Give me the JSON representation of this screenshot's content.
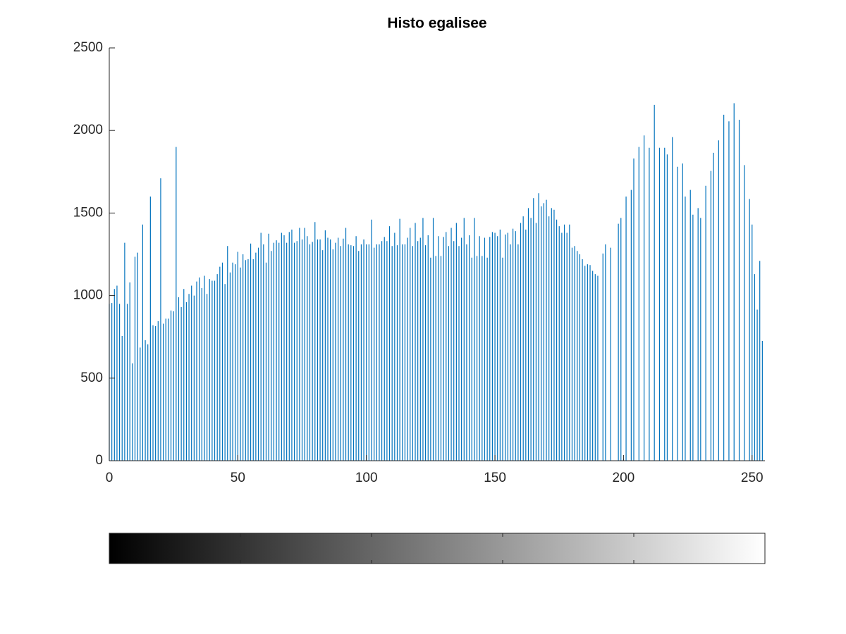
{
  "chart_data": {
    "type": "bar",
    "title": "Histo egalisee",
    "color": "#0072bd",
    "xlim": [
      0,
      255
    ],
    "xticks": [
      0,
      50,
      100,
      150,
      200,
      250
    ],
    "ylim": [
      0,
      2500
    ],
    "yticks": [
      0,
      500,
      1000,
      1500,
      2000,
      2500
    ],
    "values": [
      950,
      955,
      1040,
      1060,
      950,
      755,
      1320,
      950,
      1080,
      590,
      1235,
      1260,
      685,
      1430,
      730,
      705,
      1600,
      820,
      815,
      845,
      1710,
      830,
      860,
      860,
      910,
      905,
      1900,
      990,
      930,
      1040,
      960,
      1010,
      1060,
      1000,
      1085,
      1110,
      1045,
      1120,
      1010,
      1100,
      1090,
      1090,
      1130,
      1175,
      1200,
      1070,
      1300,
      1140,
      1200,
      1190,
      1265,
      1170,
      1250,
      1215,
      1220,
      1315,
      1220,
      1260,
      1290,
      1380,
      1310,
      1200,
      1375,
      1270,
      1320,
      1335,
      1320,
      1380,
      1365,
      1320,
      1385,
      1400,
      1320,
      1330,
      1410,
      1340,
      1410,
      1360,
      1310,
      1325,
      1445,
      1340,
      1340,
      1275,
      1395,
      1350,
      1340,
      1280,
      1320,
      1350,
      1300,
      1345,
      1410,
      1310,
      1305,
      1300,
      1360,
      1270,
      1310,
      1340,
      1310,
      1310,
      1460,
      1290,
      1310,
      1310,
      1330,
      1355,
      1330,
      1420,
      1300,
      1380,
      1305,
      1465,
      1310,
      1310,
      1350,
      1410,
      1300,
      1440,
      1330,
      1350,
      1470,
      1305,
      1365,
      1230,
      1470,
      1240,
      1360,
      1240,
      1355,
      1385,
      1300,
      1410,
      1330,
      1440,
      1300,
      1350,
      1470,
      1310,
      1365,
      1230,
      1470,
      1240,
      1360,
      1240,
      1350,
      1230,
      1355,
      1385,
      1380,
      1360,
      1400,
      1230,
      1370,
      1380,
      1310,
      1405,
      1390,
      1310,
      1440,
      1480,
      1400,
      1530,
      1470,
      1590,
      1440,
      1620,
      1540,
      1560,
      1580,
      1480,
      1530,
      1520,
      1460,
      1420,
      1380,
      1430,
      1380,
      1430,
      1290,
      1300,
      1270,
      1250,
      1220,
      1180,
      1190,
      1185,
      1150,
      1130,
      1120,
      0,
      1255,
      1310,
      0,
      1290,
      0,
      0,
      1435,
      1470,
      10,
      1600,
      0,
      1640,
      1830,
      0,
      1900,
      0,
      1970,
      0,
      1895,
      0,
      2155,
      0,
      1895,
      0,
      1895,
      1855,
      0,
      1960,
      0,
      1780,
      0,
      1800,
      1600,
      0,
      1640,
      1490,
      0,
      1530,
      1470,
      0,
      1665,
      0,
      1755,
      1865,
      0,
      1940,
      0,
      2095,
      0,
      2055,
      0,
      2165,
      0,
      2065,
      0,
      1790,
      0,
      1585,
      1430,
      1130,
      915,
      1210,
      725,
      0
    ]
  }
}
